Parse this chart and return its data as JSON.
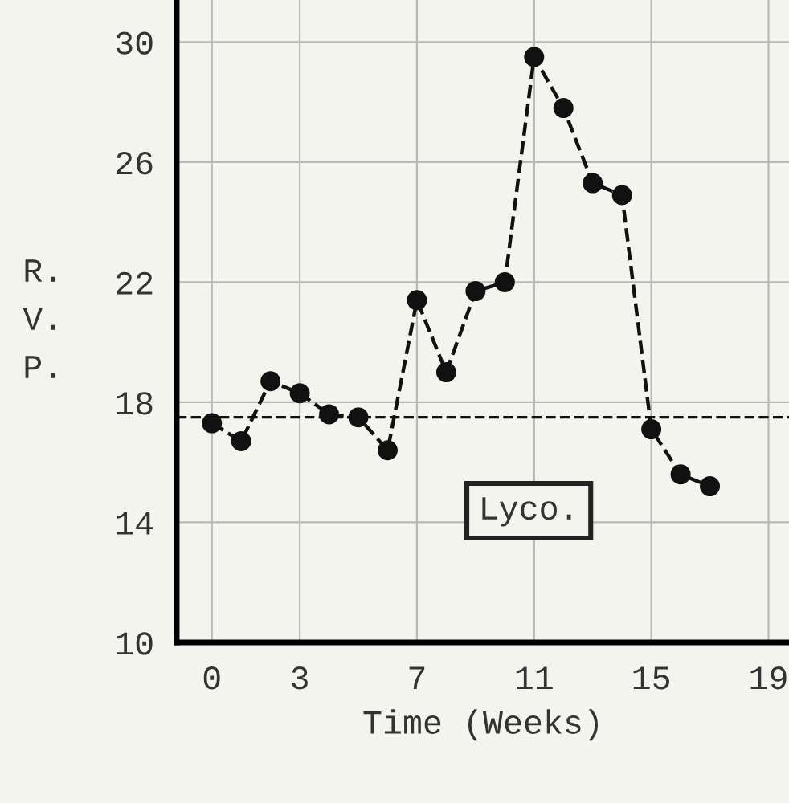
{
  "chart_data": {
    "type": "line",
    "xlabel": "Time (Weeks)",
    "ylabel": "R.\nV.\nP.",
    "x": [
      0,
      1,
      2,
      3,
      4,
      5,
      6,
      7,
      8,
      9,
      10,
      11,
      12,
      13,
      14,
      15,
      16,
      17
    ],
    "series": [
      {
        "color": "#111111",
        "values": [
          17.3,
          16.7,
          18.7,
          18.3,
          17.6,
          17.5,
          16.4,
          21.4,
          19.0,
          21.7,
          22.0,
          29.5,
          27.8,
          25.3,
          24.9,
          17.1,
          15.6,
          15.2
        ]
      }
    ],
    "marker": "circle",
    "line_style": "dashed",
    "xlim": [
      -1.2,
      19.7
    ],
    "xticks": [
      0,
      3,
      7,
      11,
      15,
      19
    ],
    "ylim": [
      10,
      31.4
    ],
    "yticks": [
      10,
      14,
      18,
      22,
      26,
      30
    ],
    "ref_lines": [
      {
        "axis": "y",
        "value": 17.5,
        "color": "#111111",
        "line_style": "dashed"
      }
    ],
    "annotations": [
      "Lyco."
    ],
    "grid": true
  }
}
